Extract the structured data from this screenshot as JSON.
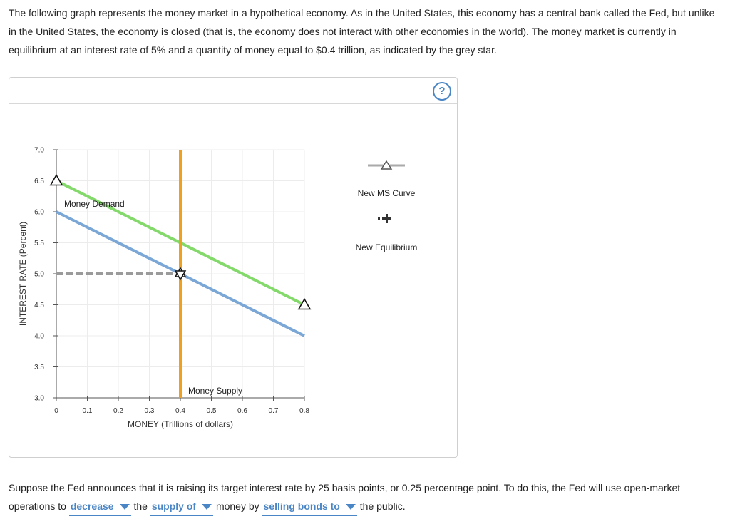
{
  "intro_text": "The following graph represents the money market in a hypothetical economy. As in the United States, this economy has a central bank called the Fed, but unlike in the United States, the economy is closed (that is, the economy does not interact with other economies in the world). The money market is currently in equilibrium at an interest rate of 5% and a quantity of money equal to $0.4 trillion, as indicated by the grey star.",
  "help_label": "?",
  "chart_data": {
    "type": "line",
    "xlabel": "MONEY (Trillions of dollars)",
    "ylabel": "INTEREST RATE (Percent)",
    "xlim": [
      0,
      0.8
    ],
    "ylim": [
      3.0,
      7.0
    ],
    "xticks": [
      "0",
      "0.1",
      "0.2",
      "0.3",
      "0.4",
      "0.5",
      "0.6",
      "0.7",
      "0.8"
    ],
    "yticks": [
      "3.0",
      "3.5",
      "4.0",
      "4.5",
      "5.0",
      "5.5",
      "6.0",
      "6.5",
      "7.0"
    ],
    "grid": true,
    "series": [
      {
        "name": "Money Demand",
        "color": "#7ba7d6",
        "x": [
          0,
          0.8
        ],
        "y": [
          6.0,
          4.0
        ]
      },
      {
        "name": "",
        "color": "#84d96b",
        "x": [
          0,
          0.8
        ],
        "y": [
          6.5,
          4.5
        ],
        "markers": "triangle-endpoints"
      },
      {
        "name": "Money Supply",
        "color": "#f0a020",
        "x": [
          0.4,
          0.4
        ],
        "y": [
          3.0,
          7.0
        ]
      }
    ],
    "equilibrium": {
      "x": 0.4,
      "y": 5.0,
      "marker": "star",
      "color": "#555555"
    },
    "guide_line": {
      "x": [
        0,
        0.4
      ],
      "y": [
        5.0,
        5.0
      ],
      "style": "dashed",
      "color": "#9a9a9a"
    },
    "legend": [
      {
        "label": "New MS Curve",
        "symbol": "triangle-line"
      },
      {
        "label": "New Equilibrium",
        "symbol": "plus"
      }
    ]
  },
  "question": {
    "text_1": "Suppose the Fed announces that it is raising its target interest rate by 25 basis points, or 0.25 percentage point. To do this, the Fed will use open-market operations to",
    "dropdown_1": "decrease",
    "text_2": "the",
    "dropdown_2": "supply of",
    "text_3": "money by",
    "dropdown_3": "selling bonds to",
    "text_4": "the public."
  }
}
